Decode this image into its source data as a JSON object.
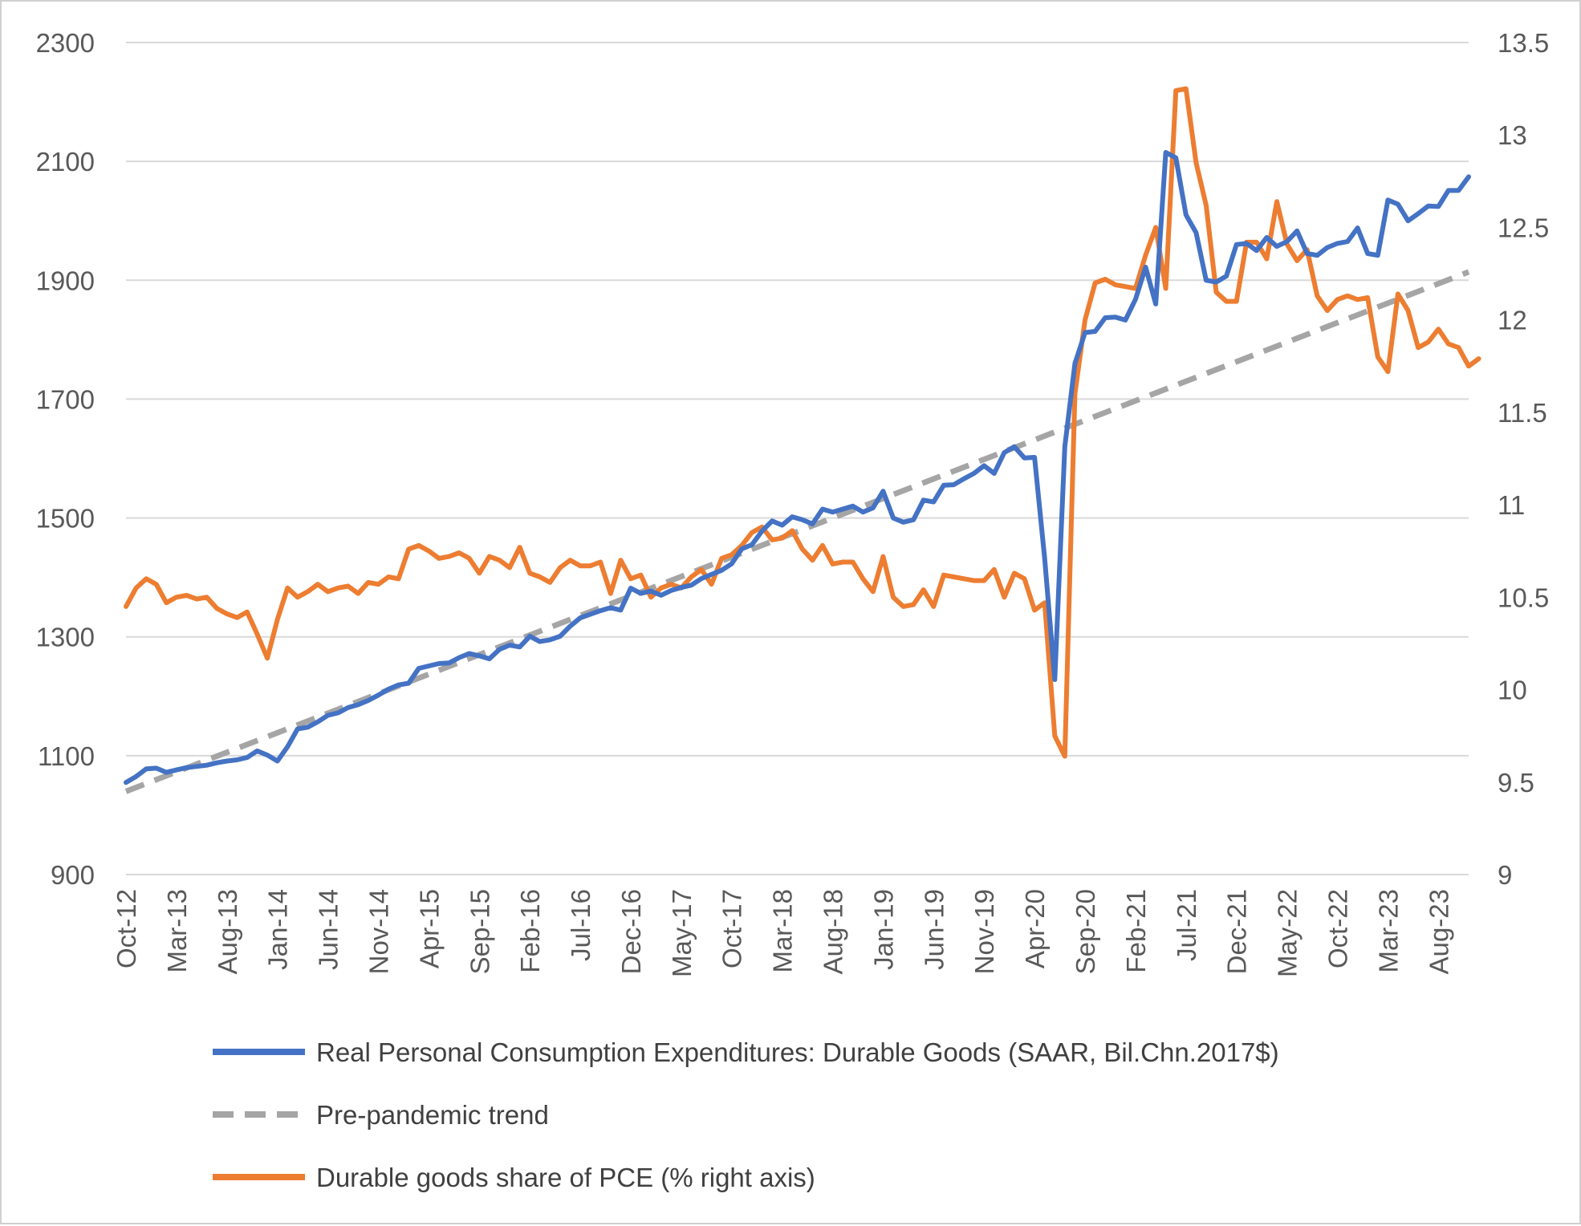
{
  "chart_data": {
    "type": "line",
    "title": "",
    "xlabel": "",
    "ylabel": "",
    "y2label": "",
    "ylim": [
      900,
      2300
    ],
    "y2lim": [
      9,
      13.5
    ],
    "y_ticks": [
      "900",
      "1100",
      "1300",
      "1500",
      "1700",
      "1900",
      "2100",
      "2300"
    ],
    "y2_ticks": [
      "9",
      "9.5",
      "10",
      "10.5",
      "11",
      "11.5",
      "12",
      "12.5",
      "13",
      "13.5"
    ],
    "x_tick_labels": [
      "Oct-12",
      "Mar-13",
      "Aug-13",
      "Jan-14",
      "Jun-14",
      "Nov-14",
      "Apr-15",
      "Sep-15",
      "Feb-16",
      "Jul-16",
      "Dec-16",
      "May-17",
      "Oct-17",
      "Mar-18",
      "Aug-18",
      "Jan-19",
      "Jun-19",
      "Nov-19",
      "Apr-20",
      "Sep-20",
      "Feb-21",
      "Jul-21",
      "Dec-21",
      "May-22",
      "Oct-22",
      "Mar-23",
      "Aug-23"
    ],
    "grid": true,
    "legend_position": "bottom",
    "series": [
      {
        "name": "Real Personal Consumption Expenditures: Durable Goods (SAAR, Bil.Chn.2017$)",
        "axis": "left",
        "color": "#4472c4",
        "style": "solid",
        "values": [
          1055,
          1065,
          1078,
          1079,
          1072,
          1076,
          1080,
          1082,
          1084,
          1088,
          1091,
          1093,
          1097,
          1108,
          1101,
          1091,
          1115,
          1145,
          1148,
          1157,
          1168,
          1172,
          1181,
          1186,
          1193,
          1202,
          1212,
          1219,
          1222,
          1247,
          1251,
          1255,
          1256,
          1265,
          1272,
          1268,
          1263,
          1279,
          1286,
          1283,
          1301,
          1292,
          1295,
          1301,
          1318,
          1332,
          1338,
          1344,
          1349,
          1345,
          1382,
          1373,
          1377,
          1370,
          1378,
          1383,
          1387,
          1398,
          1405,
          1412,
          1423,
          1448,
          1455,
          1478,
          1495,
          1488,
          1502,
          1497,
          1490,
          1515,
          1510,
          1515,
          1520,
          1510,
          1517,
          1545,
          1500,
          1493,
          1497,
          1530,
          1527,
          1555,
          1556,
          1566,
          1575,
          1588,
          1575,
          1610,
          1620,
          1601,
          1602,
          1432,
          1228,
          1620,
          1760,
          1812,
          1814,
          1837,
          1838,
          1833,
          1868,
          1922,
          1860,
          2115,
          2106,
          2010,
          1980,
          1900,
          1897,
          1907,
          1960,
          1962,
          1950,
          1972,
          1957,
          1965,
          1983,
          1945,
          1942,
          1955,
          1962,
          1965,
          1988,
          1945,
          1942,
          2035,
          2028,
          2000,
          2012,
          2025,
          2024,
          2051,
          2051,
          2074
        ]
      },
      {
        "name": "Pre-pandemic trend",
        "axis": "left",
        "color": "#a5a5a5",
        "style": "dashed",
        "values": [
          1040,
          1914
        ]
      },
      {
        "name": "Durable goods share of PCE (% right axis)",
        "axis": "right",
        "color": "#ed7d31",
        "style": "solid",
        "values": [
          10.45,
          10.55,
          10.6,
          10.57,
          10.47,
          10.5,
          10.51,
          10.49,
          10.5,
          10.44,
          10.41,
          10.39,
          10.42,
          10.3,
          10.17,
          10.38,
          10.55,
          10.5,
          10.53,
          10.57,
          10.53,
          10.55,
          10.56,
          10.52,
          10.58,
          10.57,
          10.61,
          10.6,
          10.76,
          10.78,
          10.75,
          10.71,
          10.72,
          10.74,
          10.71,
          10.63,
          10.72,
          10.7,
          10.66,
          10.77,
          10.63,
          10.61,
          10.58,
          10.66,
          10.7,
          10.67,
          10.67,
          10.69,
          10.52,
          10.7,
          10.6,
          10.62,
          10.5,
          10.55,
          10.57,
          10.55,
          10.61,
          10.65,
          10.57,
          10.71,
          10.73,
          10.78,
          10.85,
          10.88,
          10.81,
          10.82,
          10.86,
          10.76,
          10.7,
          10.78,
          10.68,
          10.69,
          10.69,
          10.6,
          10.53,
          10.72,
          10.5,
          10.45,
          10.46,
          10.54,
          10.45,
          10.62,
          10.61,
          10.6,
          10.59,
          10.59,
          10.65,
          10.5,
          10.63,
          10.6,
          10.43,
          10.47,
          9.75,
          9.64,
          11.6,
          12.0,
          12.2,
          12.22,
          12.19,
          12.18,
          12.17,
          12.35,
          12.5,
          12.17,
          13.24,
          13.25,
          12.85,
          12.62,
          12.15,
          12.1,
          12.1,
          12.42,
          12.42,
          12.33,
          12.64,
          12.41,
          12.32,
          12.38,
          12.13,
          12.05,
          12.11,
          12.13,
          12.11,
          12.12,
          11.8,
          11.72,
          12.14,
          12.05,
          11.85,
          11.88,
          11.95,
          11.87,
          11.85,
          11.75,
          11.79
        ]
      }
    ]
  }
}
